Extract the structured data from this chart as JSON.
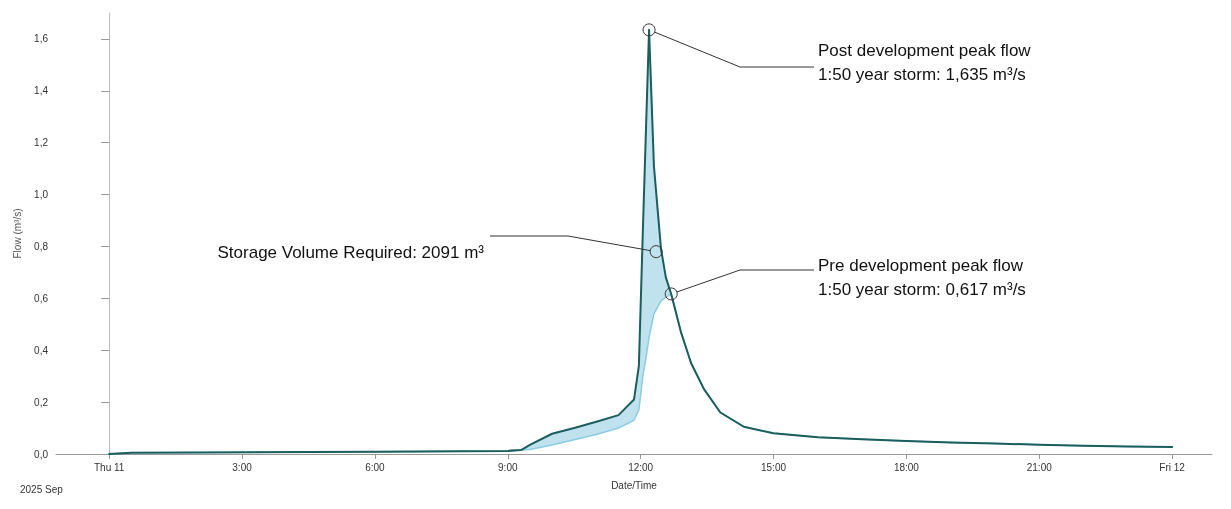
{
  "chart_data": {
    "type": "line",
    "xlabel": "Date/Time",
    "ylabel": "Flow (m³/s)",
    "x": [
      0,
      0.5,
      2,
      4.5,
      6,
      8,
      9,
      9.3,
      9.5,
      10,
      10.5,
      11,
      11.5,
      11.85,
      11.96,
      12.05,
      12.12,
      12.19,
      12.3,
      12.46,
      12.57,
      12.69,
      12.91,
      13.14,
      13.43,
      13.8,
      14.33,
      15,
      16,
      17,
      18,
      19,
      20,
      21,
      22,
      23,
      24
    ],
    "series": [
      {
        "color": "#8ccbe0",
        "values": [
          0,
          0.005,
          0.006,
          0.008,
          0.009,
          0.011,
          0.012,
          0.015,
          0.017,
          0.035,
          0.055,
          0.075,
          0.1,
          0.13,
          0.17,
          0.3,
          0.37,
          0.45,
          0.54,
          0.59,
          0.605,
          0.617,
          0.47,
          0.35,
          0.25,
          0.16,
          0.105,
          0.08,
          0.065,
          0.057,
          0.05,
          0.044,
          0.04,
          0.036,
          0.032,
          0.029,
          0.027
        ]
      },
      {
        "color": "#1b5e5e",
        "values": [
          0,
          0.005,
          0.006,
          0.008,
          0.009,
          0.011,
          0.012,
          0.015,
          0.035,
          0.078,
          0.1,
          0.124,
          0.15,
          0.21,
          0.34,
          0.86,
          1.25,
          1.635,
          1.11,
          0.79,
          0.68,
          0.617,
          0.47,
          0.35,
          0.25,
          0.16,
          0.105,
          0.08,
          0.065,
          0.057,
          0.05,
          0.044,
          0.04,
          0.036,
          0.032,
          0.029,
          0.027
        ],
        "lower": [
          0,
          0.005,
          0.006,
          0.008,
          0.009,
          0.011,
          0.012,
          0.015,
          0.017,
          0.035,
          0.055,
          0.075,
          0.1,
          0.13,
          0.17,
          0.3,
          0.37,
          0.45,
          0.54,
          0.59,
          0.605,
          0.617,
          0.47,
          0.35,
          0.25,
          0.16,
          0.105,
          0.08,
          0.065,
          0.057,
          0.05,
          0.044,
          0.04,
          0.036,
          0.032,
          0.029,
          0.027
        ],
        "upper": [
          0,
          0.005,
          0.006,
          0.008,
          0.009,
          0.011,
          0.012,
          0.015,
          0.035,
          0.078,
          0.1,
          0.124,
          0.15,
          0.21,
          0.34,
          0.86,
          1.25,
          1.635,
          1.11,
          0.79,
          0.68,
          0.617,
          0.47,
          0.35,
          0.25,
          0.16,
          0.105,
          0.08,
          0.065,
          0.057,
          0.05,
          0.044,
          0.04,
          0.036,
          0.032,
          0.029,
          0.027
        ]
      }
    ],
    "xlim": [
      -1.2,
      24.9
    ],
    "xticks": [
      {
        "value": 0,
        "label": "Thu 11"
      },
      {
        "value": 3,
        "label": "3:00"
      },
      {
        "value": 6,
        "label": "6:00"
      },
      {
        "value": 9,
        "label": "9:00"
      },
      {
        "value": 12,
        "label": "12:00"
      },
      {
        "value": 15,
        "label": "15:00"
      },
      {
        "value": 18,
        "label": "18:00"
      },
      {
        "value": 21,
        "label": "21:00"
      },
      {
        "value": 24,
        "label": "Fri 12"
      }
    ],
    "ylim": [
      0,
      1.7
    ],
    "yticks": [
      {
        "value": 0,
        "label": "0,0"
      },
      {
        "value": 0.2,
        "label": "0,2"
      },
      {
        "value": 0.4,
        "label": "0,4"
      },
      {
        "value": 0.6,
        "label": "0,6"
      },
      {
        "value": 0.8,
        "label": "0,8"
      },
      {
        "value": 1,
        "label": "1,0"
      },
      {
        "value": 1.2,
        "label": "1,2"
      },
      {
        "value": 1.4,
        "label": "1,4"
      },
      {
        "value": 1.6,
        "label": "1,6"
      }
    ],
    "marker": "none",
    "line_style": "solid",
    "annotations": [
      {
        "text": "Post development peak flow\n1:50 year storm: 1,635 m³/s",
        "x": 12.19,
        "y": 1.635
      },
      {
        "text": "Storage Volume Required: 2091 m³",
        "x": 12.35,
        "y": 0.78
      },
      {
        "text": "Pre development peak flow\n1:50 year storm: 0,617 m³/s",
        "x": 12.69,
        "y": 0.617
      },
      "2025 Sep"
    ]
  }
}
